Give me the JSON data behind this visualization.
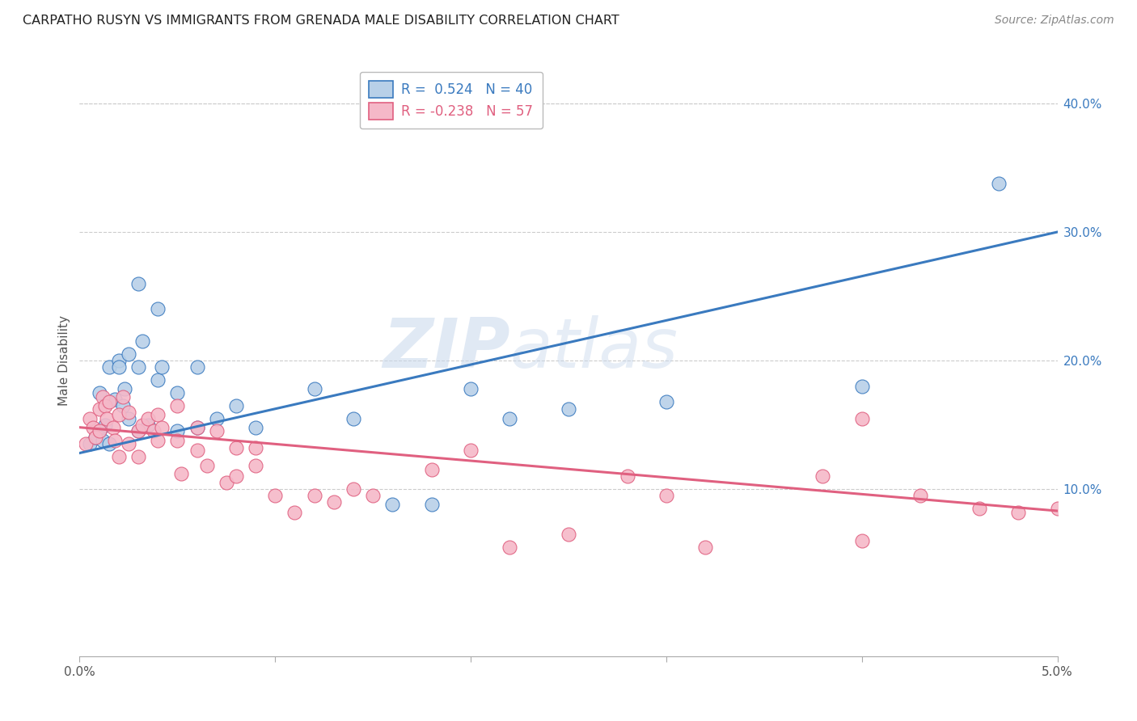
{
  "title": "CARPATHO RUSYN VS IMMIGRANTS FROM GRENADA MALE DISABILITY CORRELATION CHART",
  "source": "Source: ZipAtlas.com",
  "ylabel": "Male Disability",
  "right_yticks": [
    "10.0%",
    "20.0%",
    "30.0%",
    "40.0%"
  ],
  "right_ytick_vals": [
    0.1,
    0.2,
    0.3,
    0.4
  ],
  "xlim": [
    0.0,
    0.05
  ],
  "ylim": [
    -0.03,
    0.43
  ],
  "legend_r1": "R =  0.524   N = 40",
  "legend_r2": "R = -0.238   N = 57",
  "color_blue": "#b8d0e8",
  "color_pink": "#f5b8c8",
  "line_blue": "#3a7abf",
  "line_pink": "#e06080",
  "watermark_zip": "ZIP",
  "watermark_atlas": "atlas",
  "blue_scatter_x": [
    0.0005,
    0.0008,
    0.001,
    0.001,
    0.0012,
    0.0013,
    0.0015,
    0.0015,
    0.0018,
    0.002,
    0.002,
    0.0022,
    0.0023,
    0.0025,
    0.0025,
    0.003,
    0.003,
    0.003,
    0.0032,
    0.0035,
    0.004,
    0.004,
    0.0042,
    0.005,
    0.005,
    0.006,
    0.006,
    0.007,
    0.008,
    0.009,
    0.012,
    0.014,
    0.016,
    0.018,
    0.02,
    0.022,
    0.025,
    0.03,
    0.04,
    0.047
  ],
  "blue_scatter_y": [
    0.135,
    0.14,
    0.175,
    0.145,
    0.138,
    0.15,
    0.195,
    0.135,
    0.17,
    0.2,
    0.195,
    0.165,
    0.178,
    0.205,
    0.155,
    0.26,
    0.195,
    0.145,
    0.215,
    0.15,
    0.24,
    0.185,
    0.195,
    0.175,
    0.145,
    0.195,
    0.148,
    0.155,
    0.165,
    0.148,
    0.178,
    0.155,
    0.088,
    0.088,
    0.178,
    0.155,
    0.162,
    0.168,
    0.18,
    0.338
  ],
  "pink_scatter_x": [
    0.0003,
    0.0005,
    0.0007,
    0.0008,
    0.001,
    0.001,
    0.0012,
    0.0013,
    0.0014,
    0.0015,
    0.0017,
    0.0018,
    0.002,
    0.002,
    0.0022,
    0.0025,
    0.0025,
    0.003,
    0.003,
    0.0032,
    0.0035,
    0.0038,
    0.004,
    0.004,
    0.0042,
    0.005,
    0.005,
    0.0052,
    0.006,
    0.006,
    0.0065,
    0.007,
    0.0075,
    0.008,
    0.008,
    0.009,
    0.009,
    0.01,
    0.011,
    0.012,
    0.013,
    0.014,
    0.015,
    0.018,
    0.02,
    0.022,
    0.025,
    0.028,
    0.03,
    0.032,
    0.038,
    0.04,
    0.04,
    0.043,
    0.046,
    0.048,
    0.05
  ],
  "pink_scatter_y": [
    0.135,
    0.155,
    0.148,
    0.14,
    0.162,
    0.145,
    0.172,
    0.165,
    0.155,
    0.168,
    0.148,
    0.138,
    0.158,
    0.125,
    0.172,
    0.16,
    0.135,
    0.145,
    0.125,
    0.15,
    0.155,
    0.145,
    0.138,
    0.158,
    0.148,
    0.138,
    0.165,
    0.112,
    0.148,
    0.13,
    0.118,
    0.145,
    0.105,
    0.132,
    0.11,
    0.132,
    0.118,
    0.095,
    0.082,
    0.095,
    0.09,
    0.1,
    0.095,
    0.115,
    0.13,
    0.055,
    0.065,
    0.11,
    0.095,
    0.055,
    0.11,
    0.155,
    0.06,
    0.095,
    0.085,
    0.082,
    0.085
  ],
  "blue_line_x": [
    0.0,
    0.05
  ],
  "blue_line_y": [
    0.128,
    0.3
  ],
  "pink_line_x": [
    0.0,
    0.05
  ],
  "pink_line_y": [
    0.148,
    0.083
  ]
}
